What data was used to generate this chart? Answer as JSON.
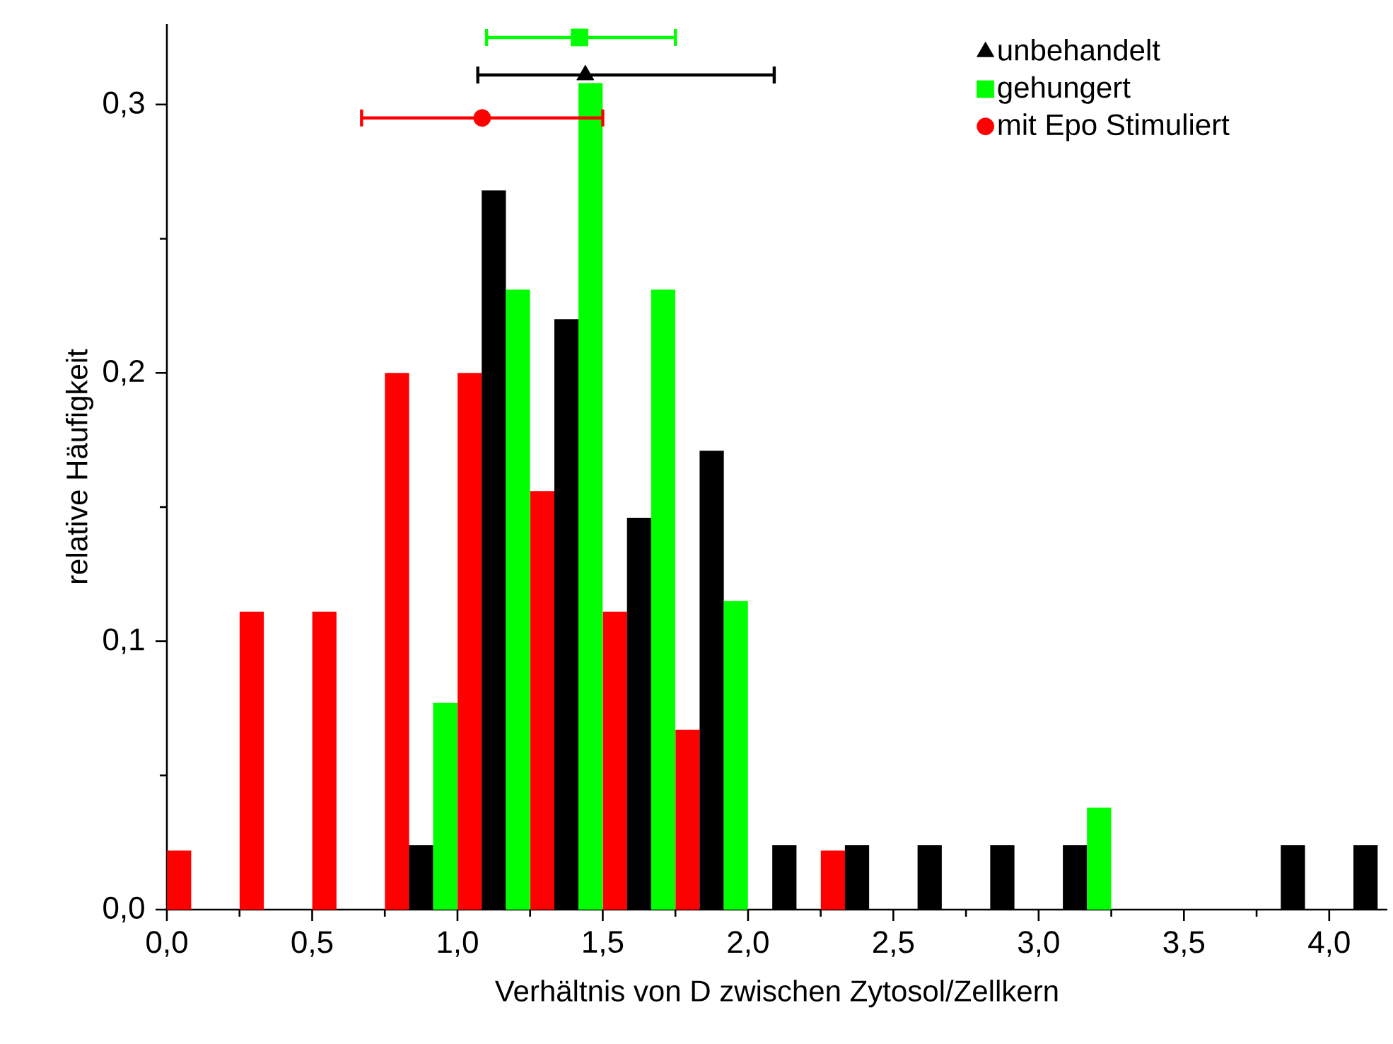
{
  "chart_data": {
    "type": "bar",
    "xlabel": "Verhältnis von D zwischen Zytosol/Zellkern",
    "ylabel": "relative Häufigkeit",
    "xlim": [
      0,
      4.2
    ],
    "ylim": [
      0,
      0.33
    ],
    "xticks": [
      {
        "value": 0,
        "label": "0,0"
      },
      {
        "value": 0.5,
        "label": "0,5"
      },
      {
        "value": 1,
        "label": "1,0"
      },
      {
        "value": 1.5,
        "label": "1,5"
      },
      {
        "value": 2,
        "label": "2,0"
      },
      {
        "value": 2.5,
        "label": "2,5"
      },
      {
        "value": 3,
        "label": "3,0"
      },
      {
        "value": 3.5,
        "label": "3,5"
      },
      {
        "value": 4,
        "label": "4,0"
      }
    ],
    "yticks": [
      {
        "value": 0,
        "label": "0,0"
      },
      {
        "value": 0.1,
        "label": "0,1"
      },
      {
        "value": 0.2,
        "label": "0,2"
      },
      {
        "value": 0.3,
        "label": "0,3"
      }
    ],
    "legend": "top right",
    "series": [
      {
        "color": "#ff0000",
        "x": [
          0.042,
          0.292,
          0.542,
          0.792,
          1.042,
          1.292,
          1.542,
          1.792,
          2.292
        ],
        "values": [
          0.022,
          0.111,
          0.111,
          0.2,
          0.2,
          0.156,
          0.111,
          0.067,
          0.022
        ]
      },
      {
        "color": "#000000",
        "x": [
          0.875,
          1.125,
          1.375,
          1.625,
          1.875,
          2.125,
          2.375,
          2.625,
          2.875,
          3.125,
          3.875,
          4.125
        ],
        "values": [
          0.024,
          0.268,
          0.22,
          0.146,
          0.171,
          0.024,
          0.024,
          0.024,
          0.024,
          0.024,
          0.024,
          0.024
        ]
      },
      {
        "color": "#00ff00",
        "x": [
          0.958,
          1.208,
          1.458,
          1.708,
          1.958,
          3.208
        ],
        "values": [
          0.077,
          0.231,
          0.308,
          0.231,
          0.115,
          0.038
        ]
      },
      {
        "type": "scatter",
        "name": "unbehandelt",
        "color": "#000000",
        "marker": "triangle",
        "x": [
          1.44
        ],
        "values": [
          0.311
        ],
        "xerrors": [
          [
            1.07,
            2.09
          ]
        ]
      },
      {
        "type": "scatter",
        "name": "gehungert",
        "color": "#00ff00",
        "marker": "square",
        "x": [
          1.42
        ],
        "values": [
          0.325
        ],
        "xerrors": [
          [
            1.1,
            1.75
          ]
        ]
      },
      {
        "type": "scatter",
        "name": "mit Epo Stimuliert",
        "color": "#ff0000",
        "marker": "circle",
        "x": [
          1.085
        ],
        "values": [
          0.295
        ],
        "xerrors": [
          [
            0.67,
            1.5
          ]
        ]
      }
    ]
  }
}
